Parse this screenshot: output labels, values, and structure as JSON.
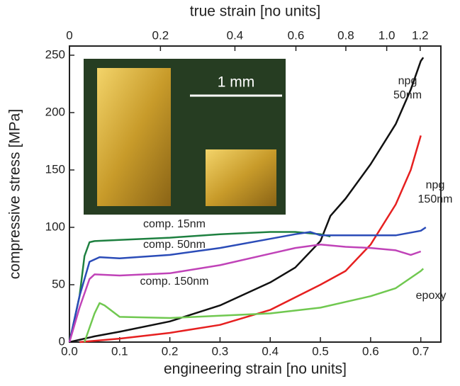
{
  "chart_data": {
    "type": "line",
    "xlabel": "engineering strain  [no units]",
    "ylabel": "compressive stress  [MPa]",
    "x2label": "true strain  [no units]",
    "x2scale": "-ln(1-x)",
    "xlim": [
      0,
      0.74
    ],
    "ylim": [
      0,
      258
    ],
    "xticks": [
      {
        "value": 0,
        "label": "0.0"
      },
      0.1,
      0.2,
      0.3,
      0.4,
      0.5,
      0.6,
      0.7
    ],
    "yticks": [
      0,
      50,
      100,
      150,
      200,
      250
    ],
    "x2ticks": [
      0,
      0.2,
      0.4,
      0.6,
      0.8,
      {
        "value": 1,
        "label": "1.0"
      },
      1.2
    ],
    "inset_scale_label": "1 mm",
    "series": [
      {
        "name": "npg 50nm",
        "color": "#111111",
        "x": [
          0,
          0.05,
          0.1,
          0.2,
          0.3,
          0.4,
          0.45,
          0.5,
          0.52,
          0.55,
          0.6,
          0.65,
          0.68,
          0.7,
          0.705
        ],
        "values": [
          0,
          5,
          9,
          18,
          32,
          52,
          65,
          88,
          110,
          125,
          155,
          190,
          220,
          245,
          248
        ]
      },
      {
        "name": "npg 150nm",
        "color": "#e62020",
        "x": [
          0.02,
          0.1,
          0.2,
          0.3,
          0.4,
          0.5,
          0.55,
          0.6,
          0.65,
          0.68,
          0.7
        ],
        "values": [
          0,
          3,
          8,
          15,
          28,
          50,
          62,
          85,
          120,
          150,
          180
        ]
      },
      {
        "name": "comp. 15nm",
        "color": "#1e8040",
        "x": [
          0,
          0.02,
          0.03,
          0.04,
          0.05,
          0.1,
          0.2,
          0.3,
          0.4,
          0.45,
          0.5,
          0.52
        ],
        "values": [
          0,
          40,
          75,
          87,
          88,
          89,
          91,
          94,
          96,
          96,
          94,
          92
        ]
      },
      {
        "name": "comp. 50nm",
        "color": "#2b4cb8",
        "x": [
          0,
          0.02,
          0.04,
          0.06,
          0.1,
          0.2,
          0.3,
          0.4,
          0.45,
          0.48,
          0.5,
          0.55,
          0.6,
          0.65,
          0.7,
          0.71
        ],
        "values": [
          0,
          40,
          70,
          74,
          73,
          76,
          82,
          90,
          94,
          96,
          93,
          93,
          93,
          93,
          97,
          100
        ]
      },
      {
        "name": "comp. 150nm",
        "color": "#c043b8",
        "x": [
          0,
          0.02,
          0.04,
          0.05,
          0.1,
          0.2,
          0.3,
          0.4,
          0.45,
          0.5,
          0.55,
          0.6,
          0.65,
          0.68,
          0.7
        ],
        "values": [
          0,
          30,
          55,
          59,
          58,
          60,
          67,
          77,
          82,
          85,
          83,
          82,
          80,
          76,
          79
        ]
      },
      {
        "name": "epoxy",
        "color": "#70c850",
        "x": [
          0.03,
          0.05,
          0.06,
          0.07,
          0.1,
          0.2,
          0.3,
          0.4,
          0.5,
          0.6,
          0.65,
          0.7,
          0.705
        ],
        "values": [
          0,
          25,
          34,
          32,
          22,
          21,
          23,
          25,
          30,
          40,
          47,
          62,
          64
        ]
      }
    ]
  }
}
